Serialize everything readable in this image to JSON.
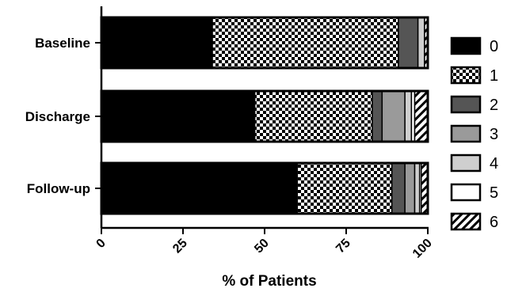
{
  "chart_data": {
    "type": "bar",
    "orientation": "horizontal",
    "stacked": true,
    "categories": [
      "Baseline",
      "Discharge",
      "Follow-up"
    ],
    "xlabel": "% of Patients",
    "ylabel": "",
    "xlim": [
      0,
      100
    ],
    "xticks": [
      "0",
      "25",
      "50",
      "75",
      "100"
    ],
    "legend_position": "right",
    "series": [
      {
        "name": "0",
        "values": [
          34,
          47,
          60
        ],
        "fill": "#000000",
        "pattern": "solid"
      },
      {
        "name": "1",
        "values": [
          57,
          36,
          29
        ],
        "fill": "#ffffff",
        "pattern": "checker"
      },
      {
        "name": "2",
        "values": [
          6,
          3,
          4
        ],
        "fill": "#555555",
        "pattern": "solid"
      },
      {
        "name": "3",
        "values": [
          0,
          7,
          3
        ],
        "fill": "#9a9a9a",
        "pattern": "solid"
      },
      {
        "name": "4",
        "values": [
          2,
          2,
          1.5
        ],
        "fill": "#cfcfcf",
        "pattern": "solid"
      },
      {
        "name": "5",
        "values": [
          0,
          1,
          0.5
        ],
        "fill": "#ffffff",
        "pattern": "solid"
      },
      {
        "name": "6",
        "values": [
          1,
          4,
          2
        ],
        "fill": "#ffffff",
        "pattern": "hatch"
      }
    ]
  }
}
